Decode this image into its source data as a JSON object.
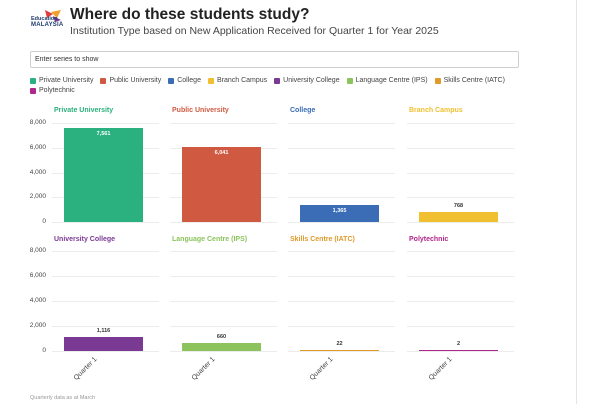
{
  "header": {
    "logo_line1": "Education",
    "logo_line2": "MALAYSIA",
    "title": "Where do these students study?",
    "subtitle": "Institution Type based on New Application Received for Quarter 1 for Year 2025"
  },
  "search": {
    "placeholder": "Enter series to show"
  },
  "legend": [
    {
      "label": "Private University",
      "color": "#2bb07f"
    },
    {
      "label": "Public University",
      "color": "#cf5a41"
    },
    {
      "label": "College",
      "color": "#3a6db5"
    },
    {
      "label": "Branch Campus",
      "color": "#f0c030"
    },
    {
      "label": "University College",
      "color": "#7a3a94"
    },
    {
      "label": "Language Centre (IPS)",
      "color": "#8cc35d"
    },
    {
      "label": "Skills Centre (IATC)",
      "color": "#e09a2a"
    },
    {
      "label": "Polytechnic",
      "color": "#b0268a"
    }
  ],
  "footnote": "Quarterly data as at March",
  "chart_data": {
    "type": "bar",
    "categories": [
      "Quarter 1"
    ],
    "ylim": [
      0,
      8000
    ],
    "yticks": [
      "8,000",
      "6,000",
      "4,000",
      "2,000",
      "0"
    ],
    "panels": [
      {
        "name": "Private University",
        "color": "#2bb07f",
        "value": 7561,
        "label": "7,561"
      },
      {
        "name": "Public University",
        "color": "#cf5a41",
        "value": 6041,
        "label": "6,041"
      },
      {
        "name": "College",
        "color": "#3a6db5",
        "value": 1365,
        "label": "1,365"
      },
      {
        "name": "Branch Campus",
        "color": "#f0c030",
        "value": 768,
        "label": "768"
      },
      {
        "name": "University College",
        "color": "#7a3a94",
        "value": 1116,
        "label": "1,116"
      },
      {
        "name": "Language Centre (IPS)",
        "color": "#8cc35d",
        "value": 660,
        "label": "660"
      },
      {
        "name": "Skills Centre (IATC)",
        "color": "#e09a2a",
        "value": 22,
        "label": "22"
      },
      {
        "name": "Polytechnic",
        "color": "#b0268a",
        "value": 2,
        "label": "2"
      }
    ]
  }
}
